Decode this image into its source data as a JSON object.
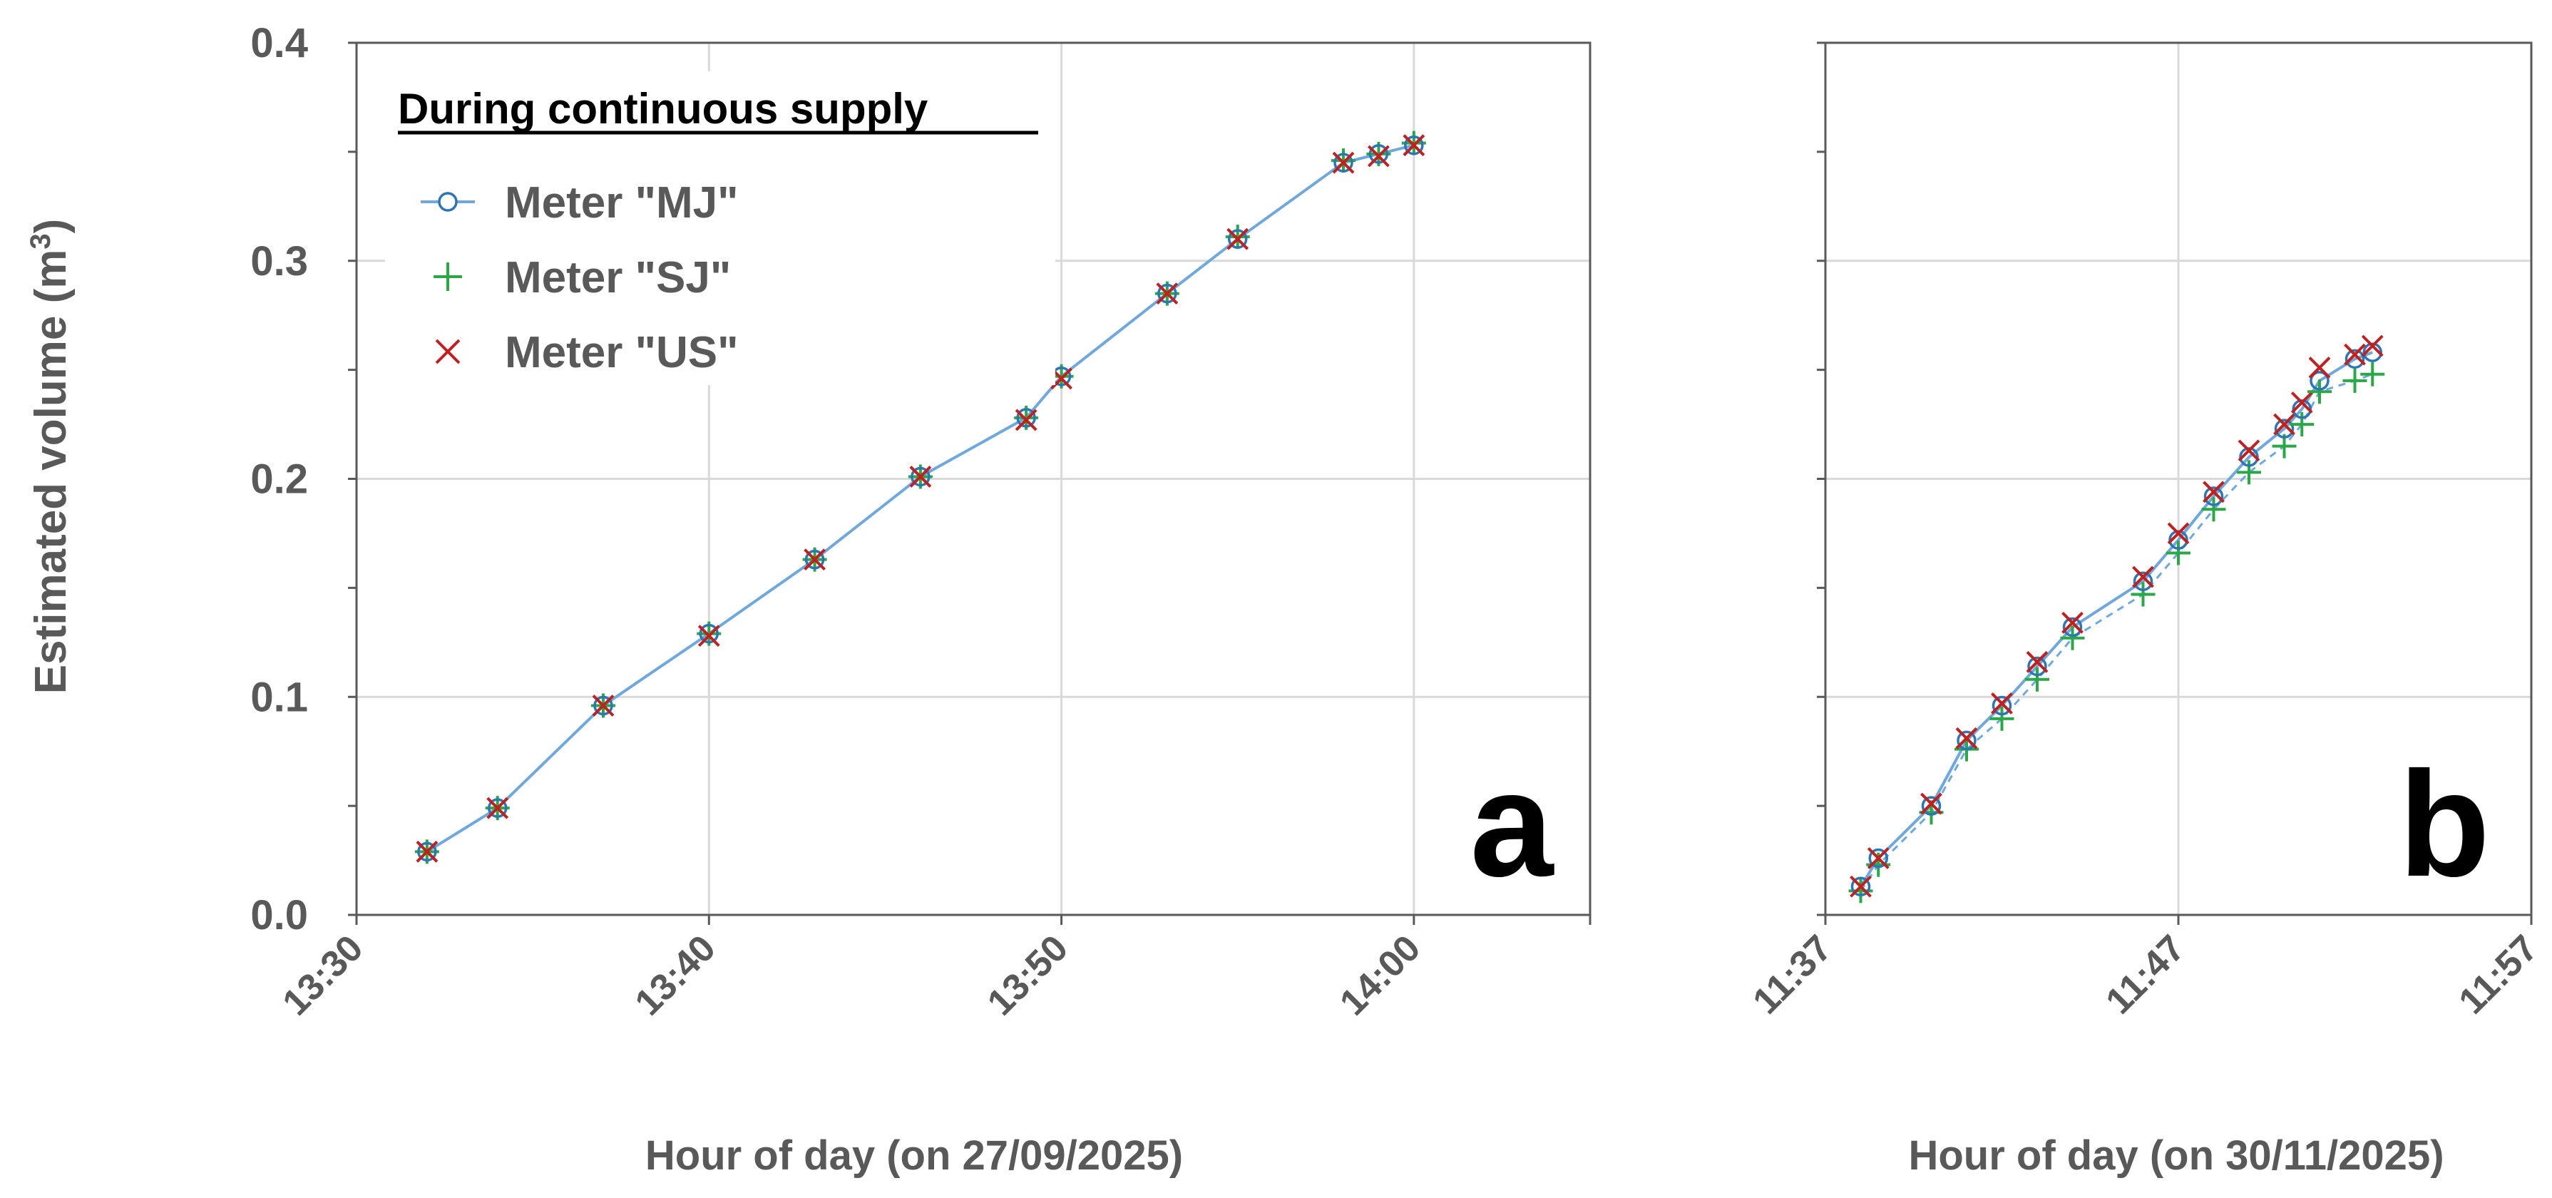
{
  "y_axis": {
    "label": "Estimated volume (m",
    "label_sup": "3",
    "label_close": ")",
    "ticks": [
      "0.0",
      "0.1",
      "0.2",
      "0.3",
      "0.4"
    ]
  },
  "legend": {
    "title": "During continuous supply",
    "entries": [
      "Meter \"MJ\"",
      "Meter \"SJ\"",
      "Meter \"US\""
    ]
  },
  "colors": {
    "MJ": "#2e75b6",
    "MJ_line": "#6fa8dc",
    "SJ": "#2aa845",
    "US": "#c0201e",
    "grid": "#d9d9d9",
    "axis": "#595959"
  },
  "chart_data": [
    {
      "type": "line",
      "panel_label": "a",
      "xlabel": "Hour of day (on 27/09/2025)",
      "ylabel": "Estimated volume (m3)",
      "xlim": [
        "13:30",
        "14:05"
      ],
      "ylim": [
        0.0,
        0.4
      ],
      "x_ticks": [
        "13:30",
        "13:40",
        "13:50",
        "14:00"
      ],
      "grid": true,
      "legend_position": "top-left",
      "x": [
        "13:32",
        "13:34",
        "13:37",
        "13:40",
        "13:43",
        "13:46",
        "13:49",
        "13:50",
        "13:53",
        "13:55",
        "13:58",
        "13:59",
        "14:00"
      ],
      "series": [
        {
          "name": "Meter \"MJ\"",
          "values": [
            0.029,
            0.049,
            0.096,
            0.129,
            0.163,
            0.201,
            0.228,
            0.247,
            0.285,
            0.31,
            0.345,
            0.349,
            0.353
          ]
        },
        {
          "name": "Meter \"SJ\"",
          "values": [
            0.029,
            0.049,
            0.096,
            0.129,
            0.163,
            0.201,
            0.228,
            0.247,
            0.285,
            0.311,
            0.346,
            0.349,
            0.354
          ]
        },
        {
          "name": "Meter \"US\"",
          "values": [
            0.029,
            0.049,
            0.096,
            0.128,
            0.163,
            0.201,
            0.227,
            0.246,
            0.285,
            0.31,
            0.345,
            0.348,
            0.353
          ]
        }
      ]
    },
    {
      "type": "line",
      "panel_label": "b",
      "xlabel": "Hour of day (on 30/11/2025)",
      "ylabel": "",
      "xlim": [
        "11:37",
        "11:57"
      ],
      "ylim": [
        0.0,
        0.4
      ],
      "x_ticks": [
        "11:37",
        "11:47",
        "11:57"
      ],
      "grid": true,
      "x": [
        "11:38:00",
        "11:38:30",
        "11:40:00",
        "11:41:00",
        "11:42:00",
        "11:43:00",
        "11:44:00",
        "11:46:00",
        "11:47:00",
        "11:48:00",
        "11:49:00",
        "11:50:00",
        "11:50:30",
        "11:51:00",
        "11:52:00",
        "11:52:30"
      ],
      "series": [
        {
          "name": "Meter \"MJ\"",
          "values": [
            0.013,
            0.026,
            0.05,
            0.08,
            0.096,
            0.114,
            0.132,
            0.153,
            0.172,
            0.192,
            0.21,
            0.223,
            0.232,
            0.245,
            0.255,
            0.258
          ]
        },
        {
          "name": "Meter \"SJ\"",
          "values": [
            0.011,
            0.023,
            0.047,
            0.076,
            0.09,
            0.108,
            0.127,
            0.147,
            0.166,
            0.186,
            0.203,
            0.215,
            0.225,
            0.24,
            0.245,
            0.248
          ]
        },
        {
          "name": "Meter \"US\"",
          "values": [
            0.013,
            0.026,
            0.051,
            0.081,
            0.097,
            0.116,
            0.134,
            0.155,
            0.175,
            0.194,
            0.213,
            0.225,
            0.235,
            0.251,
            0.257,
            0.261
          ]
        }
      ]
    }
  ]
}
